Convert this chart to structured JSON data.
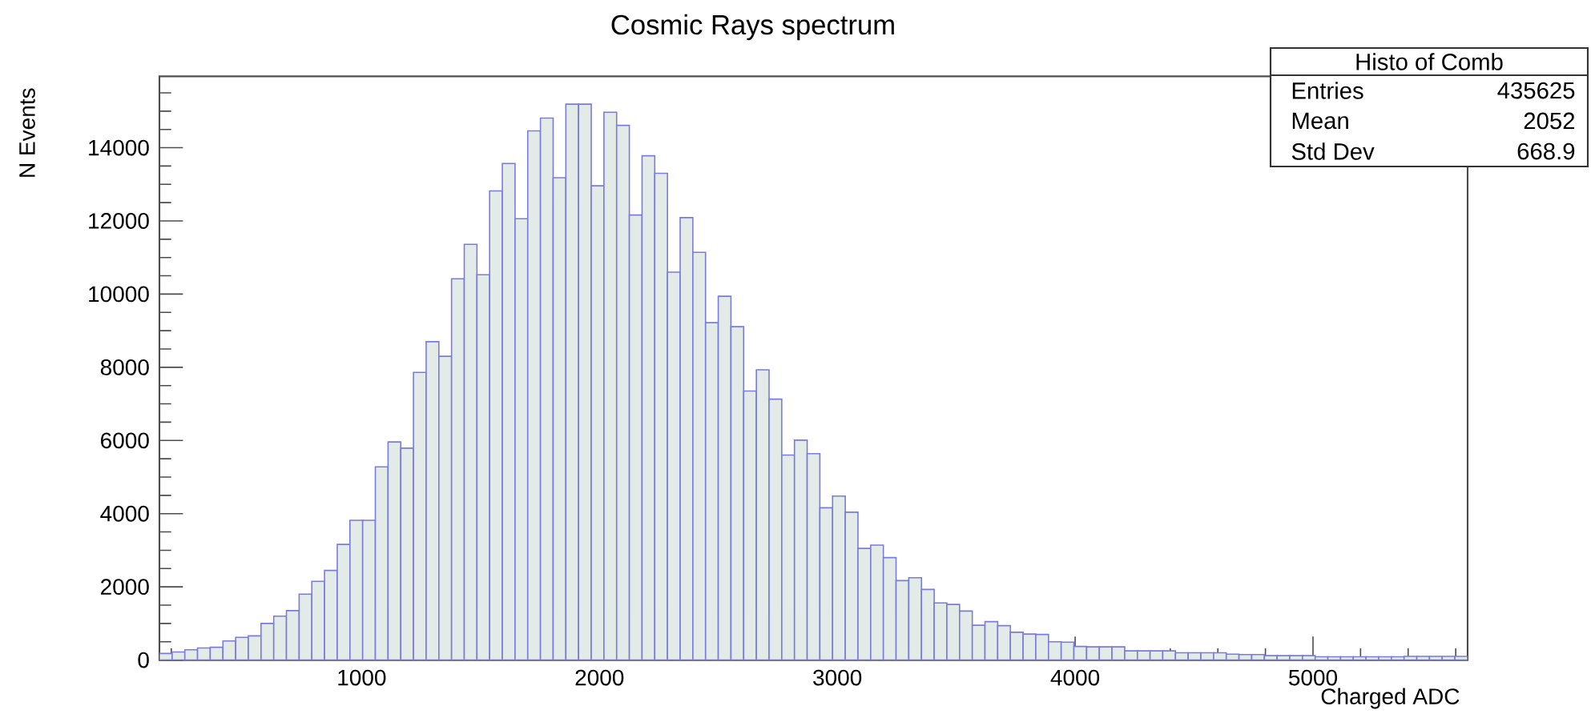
{
  "chart_data": {
    "type": "histogram",
    "title": "Cosmic Rays spectrum",
    "xlabel": "Charged ADC",
    "ylabel": "N Events",
    "color": "#7b7bd9",
    "bins": [
      150.0,
      203.4,
      256.8,
      310.2,
      363.6,
      417.0,
      470.4,
      523.8,
      577.2,
      630.6,
      684.0,
      737.4,
      790.8,
      844.2,
      897.6,
      951.0,
      1004.4,
      1057.8,
      1111.2,
      1164.6,
      1218.0,
      1271.4,
      1324.8,
      1378.2,
      1431.6,
      1485.0,
      1538.3,
      1591.7,
      1645.1,
      1698.5,
      1751.9,
      1805.3,
      1858.7,
      1912.1,
      1965.5,
      2018.9,
      2072.3,
      2125.7,
      2179.1,
      2232.5,
      2285.9,
      2339.3,
      2392.7,
      2446.1,
      2499.5,
      2552.9,
      2606.3,
      2659.7,
      2713.1,
      2766.5,
      2819.9,
      2873.3,
      2926.7,
      2980.1,
      3033.5,
      3086.9,
      3140.3,
      3193.7,
      3247.1,
      3300.5,
      3353.9,
      3407.3,
      3460.7,
      3514.1,
      3567.5,
      3620.9,
      3674.3,
      3727.7,
      3781.1,
      3834.5,
      3887.9,
      3941.3,
      3994.7,
      4048.1,
      4101.5,
      4154.9,
      4208.3,
      4261.7,
      4315.0,
      4368.4,
      4421.8,
      4475.2,
      4528.6,
      4582.0,
      4635.4,
      4688.8,
      4742.2,
      4795.6,
      4849.0,
      4902.4,
      4955.8,
      5009.2,
      5062.6,
      5116.0,
      5169.4,
      5222.8,
      5276.2,
      5329.6,
      5383.0,
      5436.4,
      5489.8,
      5543.2,
      5596.6,
      5650.0
    ],
    "values": [
      180,
      220,
      280,
      330,
      350,
      520,
      620,
      660,
      1000,
      1200,
      1350,
      1800,
      2150,
      2450,
      3160,
      3820,
      3820,
      5280,
      5960,
      5790,
      7860,
      8700,
      8300,
      10420,
      11360,
      10530,
      12820,
      13570,
      12060,
      14460,
      14810,
      13180,
      15190,
      15190,
      12960,
      14970,
      14610,
      12160,
      13780,
      13300,
      10600,
      12090,
      11140,
      9220,
      9940,
      9110,
      7350,
      7930,
      7130,
      5600,
      6010,
      5640,
      4160,
      4480,
      4040,
      3050,
      3140,
      2800,
      2170,
      2250,
      1930,
      1560,
      1520,
      1340,
      950,
      1050,
      940,
      760,
      710,
      700,
      500,
      490,
      370,
      360,
      360,
      360,
      250,
      250,
      250,
      250,
      200,
      200,
      200,
      200,
      160,
      150,
      150,
      120,
      120,
      120,
      120,
      90,
      90,
      90,
      90,
      90,
      90,
      90,
      100,
      100,
      100,
      100,
      100
    ],
    "xlim": [
      150,
      5650
    ],
    "ylim": [
      0,
      15950
    ],
    "xticks": [
      {
        "value": 200,
        "label": null
      },
      {
        "value": 400,
        "label": null
      },
      {
        "value": 600,
        "label": null
      },
      {
        "value": 800,
        "label": null
      },
      1000,
      {
        "value": 1200,
        "label": null
      },
      {
        "value": 1400,
        "label": null
      },
      {
        "value": 1600,
        "label": null
      },
      {
        "value": 1800,
        "label": null
      },
      2000,
      {
        "value": 2200,
        "label": null
      },
      {
        "value": 2400,
        "label": null
      },
      {
        "value": 2600,
        "label": null
      },
      {
        "value": 2800,
        "label": null
      },
      3000,
      {
        "value": 3200,
        "label": null
      },
      {
        "value": 3400,
        "label": null
      },
      {
        "value": 3600,
        "label": null
      },
      {
        "value": 3800,
        "label": null
      },
      4000,
      {
        "value": 4200,
        "label": null
      },
      {
        "value": 4400,
        "label": null
      },
      {
        "value": 4600,
        "label": null
      },
      {
        "value": 4800,
        "label": null
      },
      5000,
      {
        "value": 5200,
        "label": null
      },
      {
        "value": 5400,
        "label": null
      },
      {
        "value": 5600,
        "label": null
      }
    ],
    "yticks": [
      0,
      {
        "value": 500,
        "label": null
      },
      {
        "value": 1000,
        "label": null
      },
      {
        "value": 1500,
        "label": null
      },
      2000,
      {
        "value": 2500,
        "label": null
      },
      {
        "value": 3000,
        "label": null
      },
      {
        "value": 3500,
        "label": null
      },
      4000,
      {
        "value": 4500,
        "label": null
      },
      {
        "value": 5000,
        "label": null
      },
      {
        "value": 5500,
        "label": null
      },
      6000,
      {
        "value": 6500,
        "label": null
      },
      {
        "value": 7000,
        "label": null
      },
      {
        "value": 7500,
        "label": null
      },
      8000,
      {
        "value": 8500,
        "label": null
      },
      {
        "value": 9000,
        "label": null
      },
      {
        "value": 9500,
        "label": null
      },
      10000,
      {
        "value": 10500,
        "label": null
      },
      {
        "value": 11000,
        "label": null
      },
      {
        "value": 11500,
        "label": null
      },
      12000,
      {
        "value": 12500,
        "label": null
      },
      {
        "value": 13000,
        "label": null
      },
      {
        "value": 13500,
        "label": null
      },
      14000,
      {
        "value": 14500,
        "label": null
      },
      {
        "value": 15000,
        "label": null
      },
      {
        "value": 15500,
        "label": null
      }
    ],
    "grid": false,
    "annotations": [
      "Histo of Comb",
      "Entries",
      "435625",
      "Mean",
      "2052",
      "Std Dev",
      "668.9"
    ]
  }
}
